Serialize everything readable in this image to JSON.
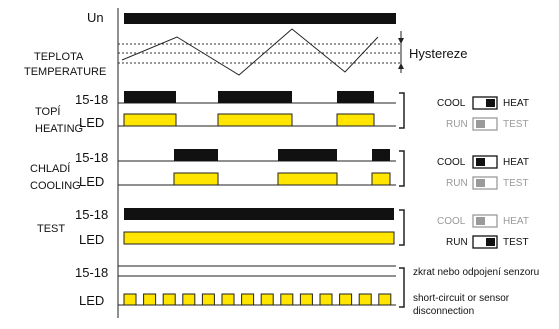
{
  "colors": {
    "black": "#111111",
    "yellow": "#ffe500",
    "gray": "#9a9a9a",
    "line": "#222222"
  },
  "supply": {
    "label": "Un"
  },
  "temperature": {
    "label_cz": "TEPLOTA",
    "label_en": "TEMPERATURE",
    "hysteresis_label": "Hystereze"
  },
  "rows": [
    {
      "id": "heating",
      "name_cz": "TOPÍ",
      "name_en": "HEATING",
      "relay_label": "15-18",
      "led_label": "LED"
    },
    {
      "id": "cooling",
      "name_cz": "CHLADÍ",
      "name_en": "COOLING",
      "relay_label": "15-18",
      "led_label": "LED"
    },
    {
      "id": "test",
      "name_cz": "",
      "name_en": "TEST",
      "relay_label": "15-18",
      "led_label": "LED"
    },
    {
      "id": "fault",
      "name_cz": "",
      "name_en": "",
      "relay_label": "15-18",
      "led_label": "LED"
    }
  ],
  "switches": [
    {
      "id": "heat",
      "top_left": "COOL",
      "top_right": "HEAT",
      "bottom_left": "RUN",
      "bottom_right": "TEST",
      "top_active": true,
      "bottom_active": false,
      "top_knob": "right",
      "bottom_knob": "left"
    },
    {
      "id": "cool",
      "top_left": "COOL",
      "top_right": "HEAT",
      "bottom_left": "RUN",
      "bottom_right": "TEST",
      "top_active": true,
      "bottom_active": false,
      "top_knob": "left",
      "bottom_knob": "left"
    },
    {
      "id": "test",
      "top_left": "COOL",
      "top_right": "HEAT",
      "bottom_left": "RUN",
      "bottom_right": "TEST",
      "top_active": false,
      "bottom_active": true,
      "top_knob": "left",
      "bottom_knob": "right"
    }
  ],
  "fault_note": {
    "line1": "zkrat nebo odpojení senzoru",
    "line2": "short-circuit or sensor",
    "line3": "disconnection"
  }
}
